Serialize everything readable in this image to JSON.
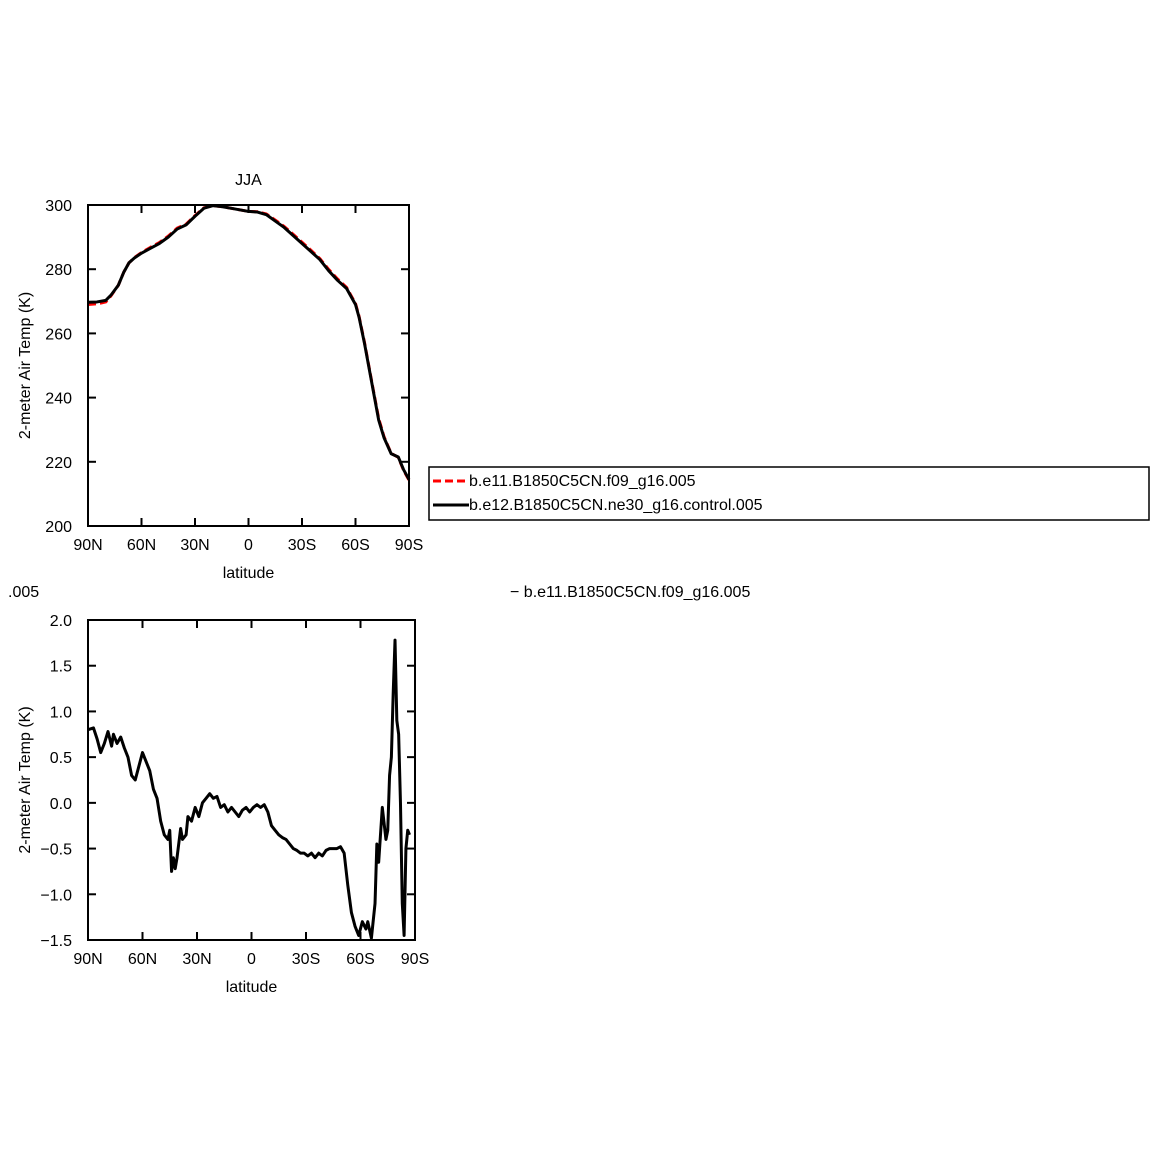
{
  "chart_data": [
    {
      "type": "line",
      "title": "JJA",
      "xlabel": "latitude",
      "ylabel": "2-meter Air Temp (K)",
      "x": [
        90,
        85,
        80,
        77,
        73,
        70,
        67,
        64,
        60,
        55,
        50,
        45,
        40,
        35,
        30,
        25,
        20,
        15,
        10,
        5,
        0,
        -5,
        -10,
        -15,
        -20,
        -25,
        -30,
        -35,
        -40,
        -45,
        -50,
        -55,
        -60,
        -62,
        -65,
        -68,
        -70,
        -73,
        -76,
        -80,
        -84,
        -87,
        -90
      ],
      "series": [
        {
          "name": "b.e11.B1850C5CN.f09_g16.005",
          "color": "#ff0000",
          "dashed": true,
          "values": [
            269,
            269.2,
            269.8,
            271.8,
            275,
            279,
            282,
            283.6,
            285.2,
            286.8,
            288.3,
            290.3,
            292.8,
            294,
            296.7,
            299.1,
            299.8,
            299.5,
            299,
            298.5,
            298,
            297.9,
            297.2,
            295.3,
            293.3,
            290.9,
            288.4,
            285.9,
            283.3,
            279.9,
            276.9,
            274.3,
            269.3,
            265.3,
            257.3,
            248.3,
            242.3,
            233.5,
            227.8,
            222.6,
            221.4,
            217.3,
            214.3
          ]
        },
        {
          "name": "b.e12.B1850C5CN.ne30_g16.control.005",
          "color": "#000000",
          "dashed": false,
          "values": [
            269.7,
            269.8,
            270.3,
            272,
            275,
            279,
            282,
            283.5,
            285,
            286.5,
            288,
            290,
            292.5,
            293.8,
            296.5,
            299,
            299.8,
            299.5,
            299,
            298.5,
            298,
            297.8,
            297,
            295,
            293,
            290.5,
            288,
            285.5,
            283,
            279.5,
            276.5,
            274,
            269,
            265,
            257,
            248,
            242,
            233,
            227.5,
            222.5,
            221.5,
            217.5,
            214.5
          ]
        }
      ],
      "xlim": [
        90,
        -90
      ],
      "xticks": [
        {
          "value": 90,
          "label": "90N"
        },
        {
          "value": 60,
          "label": "60N"
        },
        {
          "value": 30,
          "label": "30N"
        },
        0,
        {
          "value": -30,
          "label": "30S"
        },
        {
          "value": -60,
          "label": "60S"
        },
        {
          "value": -90,
          "label": "90S"
        }
      ],
      "ylim": [
        200,
        300
      ],
      "yticks": [
        200,
        220,
        240,
        260,
        280,
        300
      ],
      "legend": "right"
    },
    {
      "type": "line",
      "left_string": ".005",
      "center_string": "− b.e11.B1850C5CN.f09_g16.005",
      "xlabel": "latitude",
      "ylabel": "2-meter Air Temp (K)",
      "x": [
        90,
        87,
        85,
        83,
        81,
        79,
        77,
        76,
        74,
        72,
        70,
        68,
        66,
        64,
        62,
        60,
        58,
        56,
        54,
        52,
        50,
        48,
        46,
        45,
        44,
        43,
        42,
        41,
        39,
        38,
        36,
        35,
        33,
        31,
        29,
        27,
        25,
        23,
        21,
        19,
        17,
        15,
        13,
        11,
        9,
        7,
        5,
        3,
        1,
        -1,
        -3,
        -5,
        -7,
        -9,
        -11,
        -13,
        -15,
        -17,
        -19,
        -21,
        -23,
        -25,
        -27,
        -29,
        -31,
        -33,
        -35,
        -37,
        -39,
        -41,
        -43,
        -45,
        -47,
        -49,
        -51,
        -53,
        -55,
        -57,
        -59,
        -61,
        -63,
        -64,
        -66,
        -68,
        -69,
        -70,
        -71,
        -72,
        -74,
        -75,
        -76,
        -77,
        -78,
        -79,
        -80,
        -81,
        -82,
        -83,
        -84,
        -85,
        -86,
        -87
      ],
      "series": [
        {
          "color": "#000000",
          "dashed": false,
          "values": [
            0.8,
            0.82,
            0.7,
            0.55,
            0.65,
            0.78,
            0.62,
            0.75,
            0.65,
            0.72,
            0.6,
            0.5,
            0.3,
            0.25,
            0.4,
            0.55,
            0.45,
            0.35,
            0.15,
            0.05,
            -0.2,
            -0.35,
            -0.4,
            -0.3,
            -0.75,
            -0.6,
            -0.72,
            -0.6,
            -0.28,
            -0.4,
            -0.35,
            -0.15,
            -0.2,
            -0.05,
            -0.15,
            0,
            0.05,
            0.1,
            0.05,
            0.07,
            -0.05,
            -0.02,
            -0.1,
            -0.05,
            -0.1,
            -0.15,
            -0.08,
            -0.05,
            -0.1,
            -0.05,
            -0.02,
            -0.05,
            -0.02,
            -0.1,
            -0.25,
            -0.3,
            -0.35,
            -0.38,
            -0.4,
            -0.45,
            -0.5,
            -0.52,
            -0.55,
            -0.55,
            -0.58,
            -0.55,
            -0.6,
            -0.55,
            -0.58,
            -0.52,
            -0.5,
            -0.5,
            -0.5,
            -0.48,
            -0.55,
            -0.9,
            -1.2,
            -1.35,
            -1.45,
            -1.3,
            -1.38,
            -1.3,
            -1.48,
            -1.1,
            -0.45,
            -0.65,
            -0.35,
            -0.05,
            -0.4,
            -0.3,
            0.3,
            0.5,
            1.2,
            1.78,
            0.9,
            0.75,
            0,
            -1.1,
            -1.45,
            -0.5,
            -0.3,
            -0.35
          ]
        }
      ],
      "xlim": [
        90,
        -90
      ],
      "xticks": [
        {
          "value": 90,
          "label": "90N"
        },
        {
          "value": 60,
          "label": "60N"
        },
        {
          "value": 30,
          "label": "30N"
        },
        0,
        {
          "value": -30,
          "label": "30S"
        },
        {
          "value": -60,
          "label": "60S"
        },
        {
          "value": -90,
          "label": "90S"
        }
      ],
      "ylim": [
        -1.5,
        2
      ],
      "yticks": [
        {
          "value": -1.5,
          "label": "−1.5"
        },
        {
          "value": -1,
          "label": "−1.0"
        },
        {
          "value": -0.5,
          "label": "−0.5"
        },
        {
          "value": 0,
          "label": "0.0"
        },
        {
          "value": 0.5,
          "label": "0.5"
        },
        {
          "value": 1,
          "label": "1.0"
        },
        {
          "value": 1.5,
          "label": "1.5"
        },
        {
          "value": 2,
          "label": "2.0"
        }
      ]
    }
  ]
}
